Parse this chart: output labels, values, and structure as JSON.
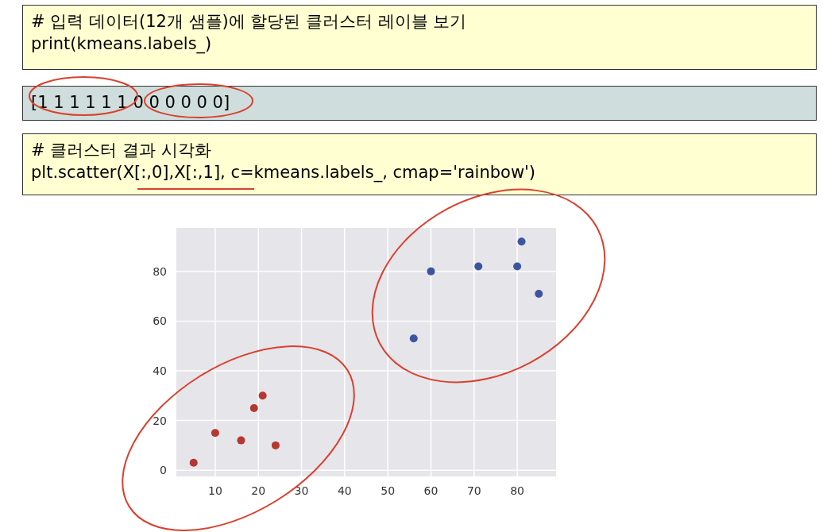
{
  "chart_data": {
    "type": "scatter",
    "annotations": [
      "# 입력 데이터(12개 샘플)에 할당된 클러스터 레이블 보기",
      "print(kmeans.labels_)",
      "[1 1 1 1 1 1 0 0 0 0 0 0]",
      "# 클러스터 결과 시각화",
      "plt.scatter(X[:,0],X[:,1], c=kmeans.labels_, cmap='rainbow')"
    ],
    "series": [
      {
        "color": "#b5372f",
        "x": [
          5,
          10,
          16,
          19,
          21,
          24
        ],
        "values": [
          3,
          15,
          12,
          25,
          30,
          10
        ]
      },
      {
        "color": "#3d55a0",
        "x": [
          56,
          60,
          71,
          80,
          81,
          85
        ],
        "values": [
          53,
          80,
          82,
          82,
          92,
          71
        ]
      }
    ],
    "xlim": [
      1,
      89
    ],
    "ylim": [
      -2.5,
      97.5
    ],
    "xticks": [
      10,
      20,
      30,
      40,
      50,
      60,
      70,
      80
    ],
    "yticks": [
      0,
      20,
      40,
      60,
      80
    ],
    "grid": true,
    "marker": "circle"
  }
}
